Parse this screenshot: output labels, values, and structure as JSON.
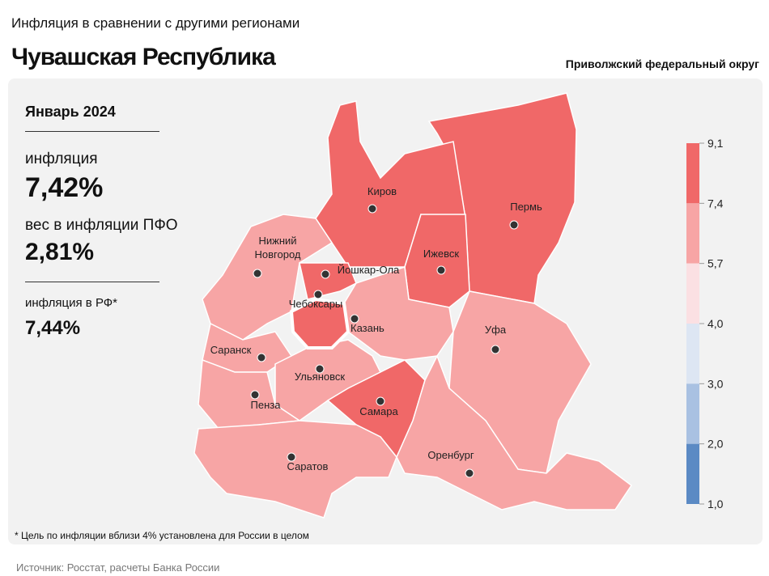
{
  "header": {
    "subtitle": "Инфляция в сравнении с другими регионами",
    "title": "Чувашская Республика",
    "district": "Приволжский федеральный округ"
  },
  "panel": {
    "period": "Январь 2024",
    "inflation_label": "инфляция",
    "inflation_value": "7,42%",
    "weight_label": "вес в инфляции ПФО",
    "weight_value": "2,81%",
    "rf_label": "инфляция в РФ*",
    "rf_value": "7,44%"
  },
  "legend": {
    "ticks": [
      {
        "value": 9.1,
        "label": "9,1"
      },
      {
        "value": 7.4,
        "label": "7,4"
      },
      {
        "value": 5.7,
        "label": "5,7"
      },
      {
        "value": 4.0,
        "label": "4,0"
      },
      {
        "value": 3.0,
        "label": "3,0"
      },
      {
        "value": 2.0,
        "label": "2,0"
      },
      {
        "value": 1.0,
        "label": "1,0"
      }
    ],
    "colors": [
      "#f06868",
      "#f7a5a5",
      "#fbe0e3",
      "#dde6f3",
      "#a9c1e2",
      "#5b8ac4"
    ]
  },
  "cities": [
    "Киров",
    "Пермь",
    "Нижний Новгород",
    "Йошкар-Ола",
    "Ижевск",
    "Чебоксары",
    "Казань",
    "Уфа",
    "Саранск",
    "Ульяновск",
    "Пенза",
    "Самара",
    "Саратов",
    "Оренбург"
  ],
  "footnote": "* Цель по инфляции вблизи 4% установлена для России в целом",
  "source": "Источник: Росстат, расчеты Банка России"
}
